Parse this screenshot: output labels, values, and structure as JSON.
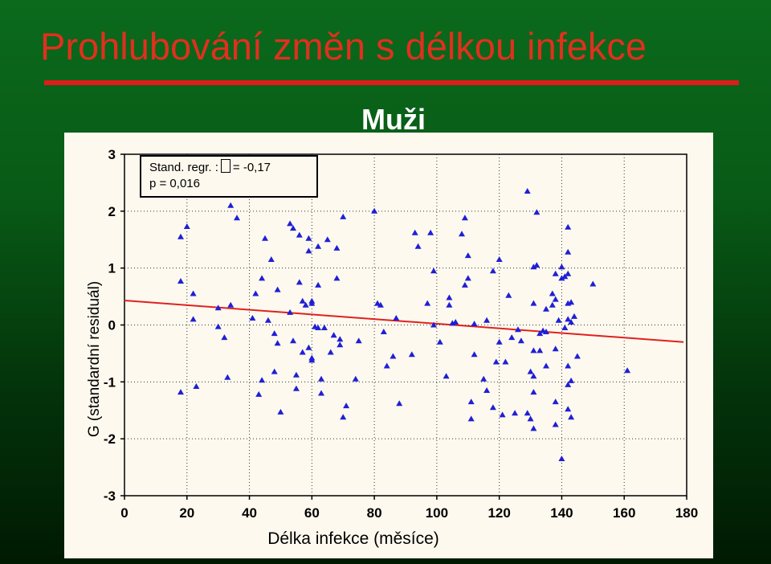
{
  "slide": {
    "title": "Prohlubování změn s délkou infekce",
    "subtitle": "Muži"
  },
  "stats_box": {
    "line1_prefix": "Stand.  regr. :",
    "line1_suffix": "= -0,17",
    "line2": "p = 0,016"
  },
  "colors": {
    "background_top": "#0b6a1c",
    "background_bottom": "#001a02",
    "title": "#e0301e",
    "underline": "#e21a1a",
    "chart_panel": "#fdf9ee",
    "marker": "#1f1fd6",
    "regression": "#e02020"
  },
  "chart_data": {
    "type": "scatter",
    "xlabel": "Délka infekce (měsíce)",
    "ylabel": "G (standardní residuál)",
    "xlim": [
      0,
      180
    ],
    "ylim": [
      -3,
      3
    ],
    "x_ticks": [
      "0",
      "20",
      "40",
      "60",
      "80",
      "100",
      "120",
      "140",
      "160",
      "180"
    ],
    "y_ticks": [
      "3",
      "2",
      "1",
      "0",
      "-1",
      "-2",
      "-3"
    ],
    "grid": true,
    "marker": "triangle",
    "regression_line": {
      "x": [
        0,
        179
      ],
      "y": [
        0.43,
        -0.3
      ]
    },
    "points": [
      [
        18,
        1.55
      ],
      [
        20,
        1.73
      ],
      [
        18,
        0.77
      ],
      [
        18,
        -1.18
      ],
      [
        22,
        0.55
      ],
      [
        22,
        0.1
      ],
      [
        23,
        -1.08
      ],
      [
        30,
        0.3
      ],
      [
        30,
        -0.03
      ],
      [
        32,
        -0.22
      ],
      [
        33,
        -0.92
      ],
      [
        34,
        0.35
      ],
      [
        34,
        2.1
      ],
      [
        36,
        1.88
      ],
      [
        41,
        0.12
      ],
      [
        42,
        0.55
      ],
      [
        43,
        -1.22
      ],
      [
        44,
        0.82
      ],
      [
        44,
        -0.97
      ],
      [
        45,
        1.52
      ],
      [
        46,
        0.08
      ],
      [
        47,
        1.15
      ],
      [
        48,
        -0.15
      ],
      [
        48,
        -0.82
      ],
      [
        49,
        0.62
      ],
      [
        49,
        -0.32
      ],
      [
        50,
        -1.53
      ],
      [
        53,
        1.78
      ],
      [
        53,
        0.22
      ],
      [
        54,
        1.7
      ],
      [
        54,
        -0.28
      ],
      [
        55,
        -0.88
      ],
      [
        55,
        -1.12
      ],
      [
        56,
        1.58
      ],
      [
        56,
        0.75
      ],
      [
        57,
        -0.48
      ],
      [
        57,
        0.42
      ],
      [
        58,
        0.35
      ],
      [
        59,
        1.52
      ],
      [
        59,
        1.3
      ],
      [
        60,
        0.42
      ],
      [
        60,
        0.38
      ],
      [
        59,
        -0.4
      ],
      [
        60,
        -0.58
      ],
      [
        60,
        -0.62
      ],
      [
        61,
        -0.03
      ],
      [
        62,
        0.7
      ],
      [
        62,
        1.38
      ],
      [
        62,
        -0.05
      ],
      [
        63,
        -0.95
      ],
      [
        63,
        -1.2
      ],
      [
        64,
        -0.05
      ],
      [
        65,
        1.5
      ],
      [
        66,
        -0.48
      ],
      [
        67,
        -0.18
      ],
      [
        68,
        1.35
      ],
      [
        68,
        0.82
      ],
      [
        69,
        -0.25
      ],
      [
        69,
        -0.35
      ],
      [
        70,
        1.9
      ],
      [
        70,
        -1.62
      ],
      [
        71,
        -1.42
      ],
      [
        74,
        -0.95
      ],
      [
        75,
        -0.28
      ],
      [
        80,
        2.0
      ],
      [
        81,
        0.38
      ],
      [
        82,
        0.35
      ],
      [
        83,
        -0.12
      ],
      [
        84,
        -0.72
      ],
      [
        86,
        -0.55
      ],
      [
        87,
        0.12
      ],
      [
        88,
        -1.38
      ],
      [
        92,
        -0.52
      ],
      [
        93,
        1.62
      ],
      [
        94,
        1.38
      ],
      [
        97,
        0.38
      ],
      [
        98,
        1.62
      ],
      [
        99,
        0.95
      ],
      [
        99,
        0.0
      ],
      [
        101,
        -0.3
      ],
      [
        103,
        -0.9
      ],
      [
        104,
        0.48
      ],
      [
        104,
        0.35
      ],
      [
        105,
        0.03
      ],
      [
        106,
        0.05
      ],
      [
        108,
        1.6
      ],
      [
        109,
        1.88
      ],
      [
        109,
        0.7
      ],
      [
        110,
        0.82
      ],
      [
        110,
        1.22
      ],
      [
        111,
        -1.35
      ],
      [
        111,
        -1.65
      ],
      [
        112,
        0.02
      ],
      [
        112,
        -0.52
      ],
      [
        115,
        -0.95
      ],
      [
        116,
        -1.15
      ],
      [
        116,
        0.08
      ],
      [
        118,
        0.95
      ],
      [
        118,
        -1.45
      ],
      [
        119,
        -0.65
      ],
      [
        120,
        1.15
      ],
      [
        120,
        -0.3
      ],
      [
        121,
        -1.58
      ],
      [
        122,
        -0.65
      ],
      [
        123,
        0.52
      ],
      [
        124,
        -0.22
      ],
      [
        125,
        -1.55
      ],
      [
        126,
        -0.08
      ],
      [
        127,
        -0.28
      ],
      [
        129,
        2.35
      ],
      [
        129,
        -1.55
      ],
      [
        130,
        -0.82
      ],
      [
        130,
        -1.65
      ],
      [
        131,
        1.02
      ],
      [
        131,
        0.38
      ],
      [
        131,
        -0.45
      ],
      [
        131,
        -0.9
      ],
      [
        131,
        -1.18
      ],
      [
        131,
        -1.82
      ],
      [
        132,
        1.05
      ],
      [
        132,
        1.98
      ],
      [
        133,
        -0.45
      ],
      [
        133,
        -0.15
      ],
      [
        134,
        -0.1
      ],
      [
        135,
        -0.12
      ],
      [
        135,
        -0.72
      ],
      [
        135,
        0.28
      ],
      [
        137,
        0.35
      ],
      [
        137,
        0.55
      ],
      [
        138,
        0.9
      ],
      [
        138,
        0.45
      ],
      [
        138,
        -1.35
      ],
      [
        138,
        -1.75
      ],
      [
        138,
        -0.42
      ],
      [
        139,
        0.08
      ],
      [
        140,
        1.02
      ],
      [
        140,
        0.82
      ],
      [
        140,
        -2.35
      ],
      [
        141,
        -0.05
      ],
      [
        141,
        0.85
      ],
      [
        142,
        1.72
      ],
      [
        142,
        1.28
      ],
      [
        142,
        0.9
      ],
      [
        142,
        0.38
      ],
      [
        142,
        0.1
      ],
      [
        142,
        -0.72
      ],
      [
        142,
        -1.05
      ],
      [
        142,
        -1.48
      ],
      [
        143,
        0.4
      ],
      [
        143,
        -0.98
      ],
      [
        143,
        -1.62
      ],
      [
        143,
        0.05
      ],
      [
        144,
        0.15
      ],
      [
        145,
        -0.55
      ],
      [
        150,
        0.72
      ],
      [
        161,
        -0.8
      ]
    ]
  }
}
